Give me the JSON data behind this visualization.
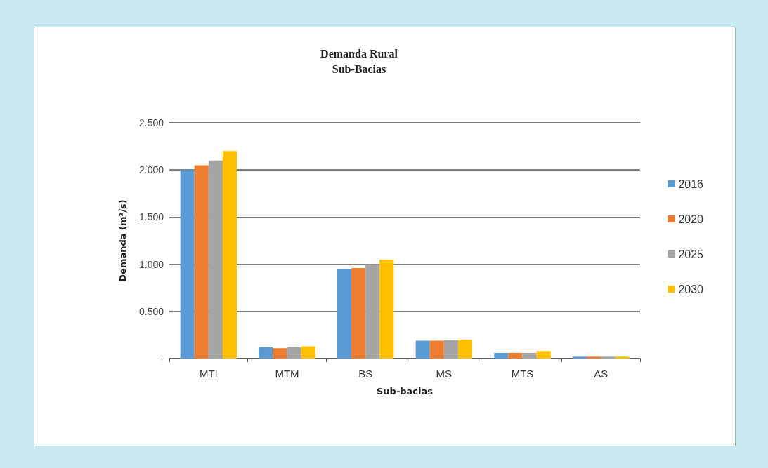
{
  "chart_data": {
    "type": "bar",
    "title": "Demanda Rural",
    "subtitle": "Sub-Bacias",
    "xlabel": "Sub-bacias",
    "ylabel": "Demanda (m³/s)",
    "categories": [
      "MTI",
      "MTM",
      "BS",
      "MS",
      "MTS",
      "AS"
    ],
    "series": [
      {
        "name": "2016",
        "color": "#5b9bd5",
        "values": [
          2.0,
          0.12,
          0.95,
          0.19,
          0.06,
          0.02
        ]
      },
      {
        "name": "2020",
        "color": "#ed7d31",
        "values": [
          2.05,
          0.11,
          0.96,
          0.19,
          0.06,
          0.02
        ]
      },
      {
        "name": "2025",
        "color": "#a5a5a5",
        "values": [
          2.1,
          0.12,
          1.0,
          0.2,
          0.06,
          0.02
        ]
      },
      {
        "name": "2030",
        "color": "#ffc000",
        "values": [
          2.2,
          0.13,
          1.05,
          0.2,
          0.08,
          0.02
        ]
      }
    ],
    "ylim": [
      0,
      2.5
    ],
    "yticks": [
      {
        "value": 0,
        "label": "-"
      },
      {
        "value": 0.5,
        "label": "0.500"
      },
      {
        "value": 1,
        "label": "1.000"
      },
      {
        "value": 1.5,
        "label": "1.500"
      },
      {
        "value": 2,
        "label": "2.000"
      },
      {
        "value": 2.5,
        "label": "2.500"
      }
    ],
    "grid": "y",
    "legend": "right"
  }
}
